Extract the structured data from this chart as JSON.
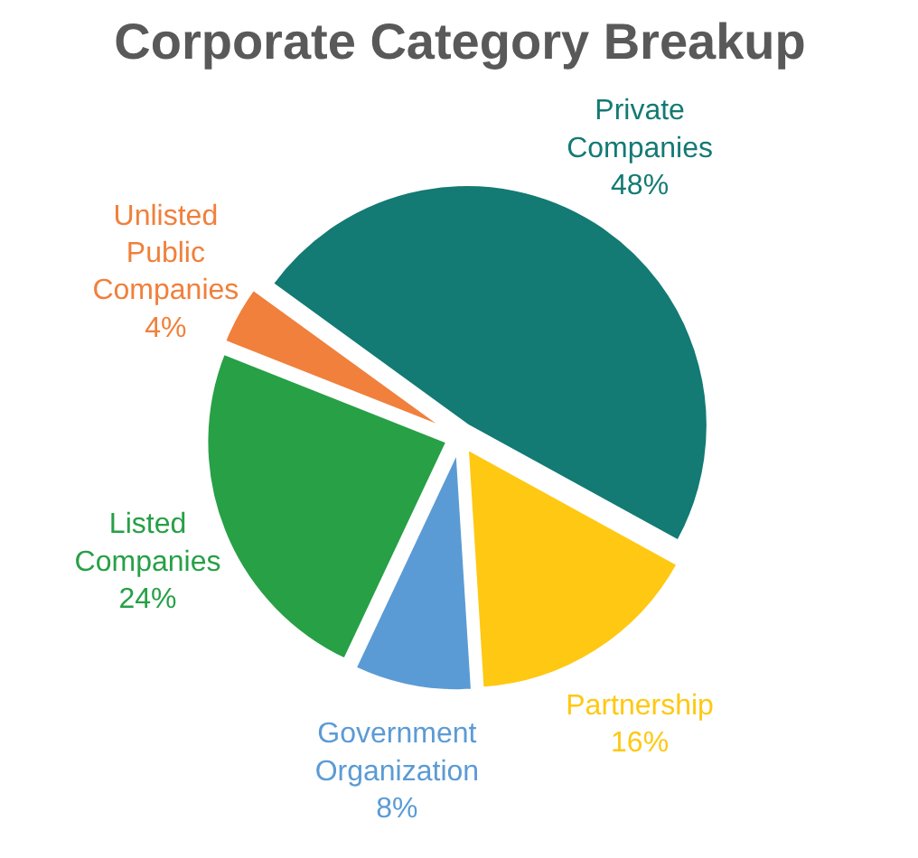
{
  "chart_data": {
    "type": "pie",
    "title": "Corporate Category Breakup",
    "categories": [
      "Private Companies",
      "Partnership",
      "Government Organization",
      "Listed Companies",
      "Unlisted Public Companies"
    ],
    "values": [
      48,
      16,
      8,
      24,
      4
    ],
    "colors": [
      "#137a74",
      "#ffc812",
      "#5b9bd5",
      "#27a046",
      "#f0803c"
    ],
    "value_labels": [
      "48%",
      "16%",
      "8%",
      "24%",
      "4%"
    ]
  }
}
